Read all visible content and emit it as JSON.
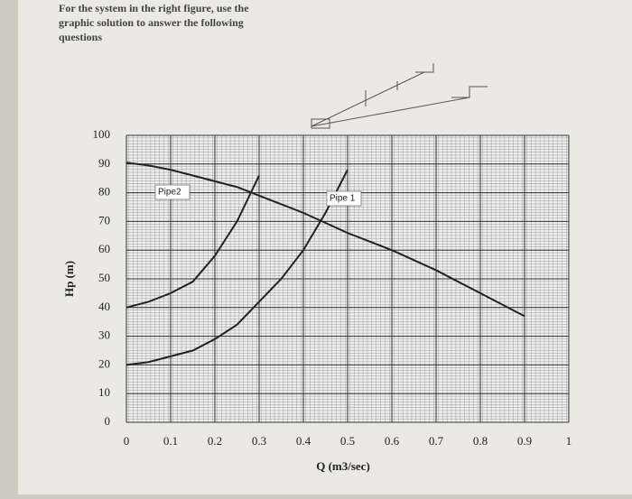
{
  "header": {
    "lines": [
      "For the system in the right figure, use the",
      "graphic solution to answer the following",
      "questions"
    ]
  },
  "chart_data": {
    "type": "line",
    "x_label": "Q (m3/sec)",
    "y_label": "Hp (m)",
    "x": [
      0,
      0.05,
      0.1,
      0.15,
      0.2,
      0.25,
      0.3,
      0.35,
      0.4,
      0.45,
      0.5,
      0.55,
      0.6,
      0.65,
      0.7,
      0.75,
      0.8,
      0.85,
      0.9
    ],
    "series": [
      {
        "color": "#222222",
        "values": [
          90.5,
          89.5,
          88,
          86,
          84,
          82,
          79,
          76,
          73,
          69.5,
          66,
          63,
          60,
          56.5,
          53,
          49,
          45,
          41,
          37
        ]
      },
      {
        "name": "Pipe2",
        "color": "#222222",
        "values": [
          40,
          42,
          45,
          49,
          58,
          70,
          86,
          null,
          null,
          null,
          null,
          null,
          null,
          null,
          null,
          null,
          null,
          null,
          null
        ]
      },
      {
        "name": "Pipe 1",
        "color": "#222222",
        "values": [
          20,
          21,
          23,
          25,
          29,
          34,
          42,
          50,
          60,
          73,
          88,
          null,
          null,
          null,
          null,
          null,
          null,
          null,
          null
        ]
      }
    ],
    "xlim": [
      0,
      1
    ],
    "xticks": [
      0,
      0.1,
      0.2,
      0.3,
      0.4,
      0.5,
      0.6,
      0.7,
      0.8,
      0.9,
      1
    ],
    "ylim": [
      0,
      100
    ],
    "yticks": [
      0,
      10,
      20,
      30,
      40,
      50,
      60,
      70,
      80,
      90,
      100
    ],
    "grid": true
  }
}
